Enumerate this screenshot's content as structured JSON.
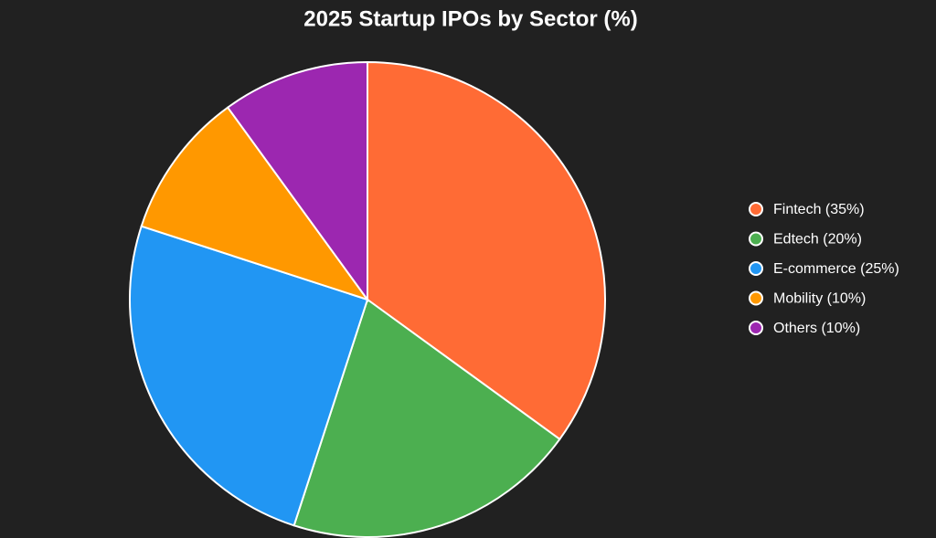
{
  "chart_data": {
    "type": "pie",
    "title": "2025 Startup IPOs by Sector (%)",
    "categories": [
      "Fintech (35%)",
      "Edtech (20%)",
      "E-commerce (25%)",
      "Mobility (10%)",
      "Others (10%)"
    ],
    "values": [
      35,
      20,
      25,
      10,
      10
    ],
    "colors": [
      "#FF6B35",
      "#4CAF50",
      "#2196F3",
      "#FF9800",
      "#9C27B0"
    ],
    "legend": "right"
  }
}
